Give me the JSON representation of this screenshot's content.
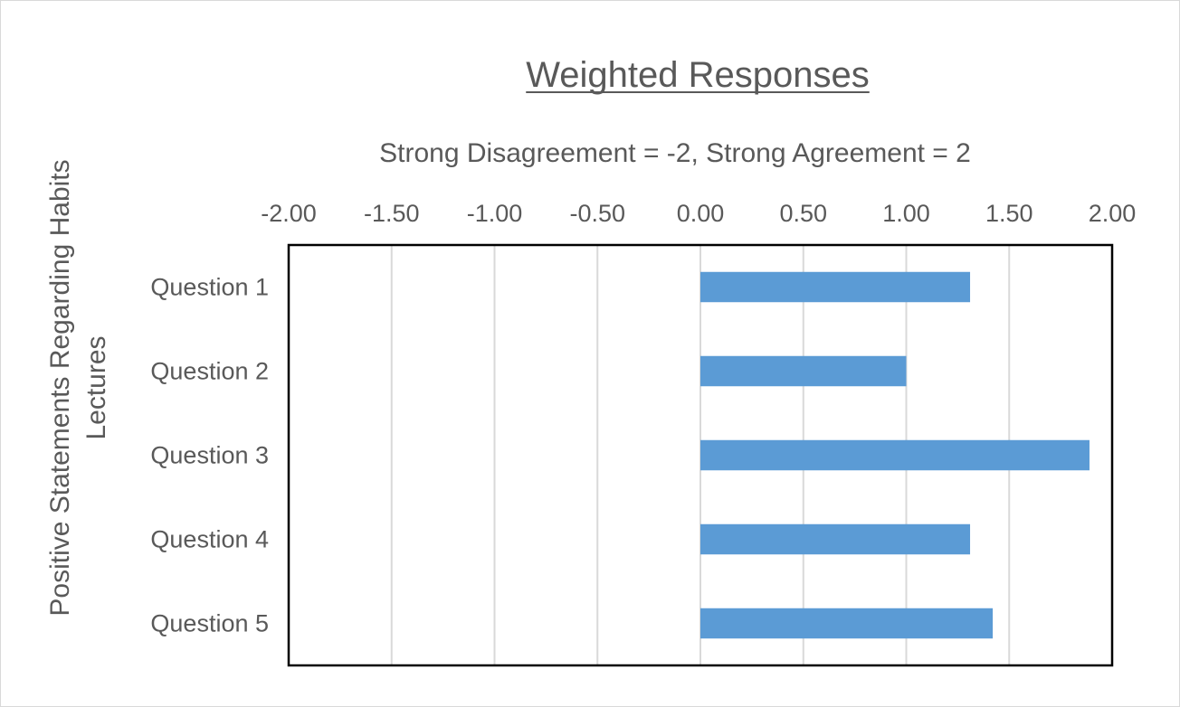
{
  "chart_data": {
    "type": "bar",
    "orientation": "horizontal",
    "title": "Weighted Responses",
    "xlabel": "Strong Disagreement = -2, Strong Agreement = 2",
    "ylabel": "Positive Statements Regarding Habits Lectures",
    "ylabel_lines": [
      "Positive Statements Regarding Habits",
      "Lectures"
    ],
    "x_axis_position": "top",
    "xlim": [
      -2,
      2
    ],
    "x_ticks": [
      -2.0,
      -1.5,
      -1.0,
      -0.5,
      0.0,
      0.5,
      1.0,
      1.5,
      2.0
    ],
    "x_tick_labels": [
      "-2.00",
      "-1.50",
      "-1.00",
      "-0.50",
      "0.00",
      "0.50",
      "1.00",
      "1.50",
      "2.00"
    ],
    "categories": [
      "Question 1",
      "Question 2",
      "Question 3",
      "Question 4",
      "Question 5"
    ],
    "values": [
      1.31,
      1.0,
      1.89,
      1.31,
      1.42
    ],
    "bar_color": "#5b9bd5",
    "grid": true,
    "gridline_color": "#d9d9d9",
    "legend": "none"
  }
}
